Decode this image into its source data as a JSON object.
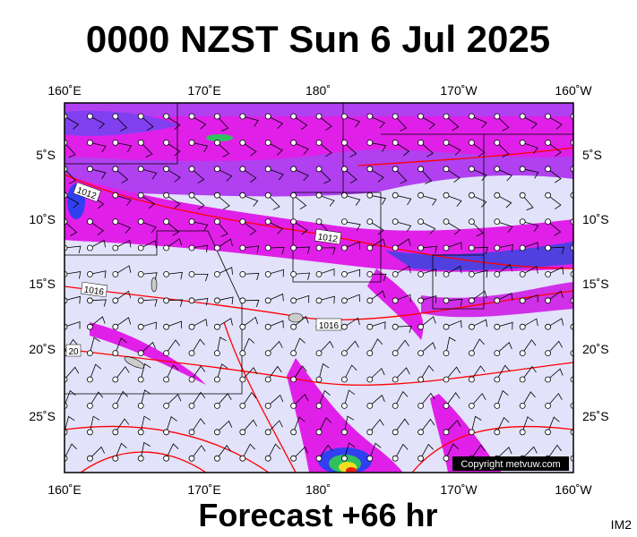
{
  "header": {
    "title": "0000 NZST Sun 6 Jul 2025"
  },
  "map": {
    "longitude_labels": [
      "160˚E",
      "170˚E",
      "180˚",
      "170˚W",
      "160˚W"
    ],
    "latitude_labels": [
      "5˚S",
      "10˚S",
      "15˚S",
      "20˚S",
      "25˚S"
    ],
    "isobar_labels": [
      "1012",
      "1012",
      "1016",
      "1016",
      "20"
    ],
    "copyright": "Copyright metvuw.com"
  },
  "footer": {
    "forecast": "Forecast +66 hr",
    "image_id": "IM2"
  }
}
